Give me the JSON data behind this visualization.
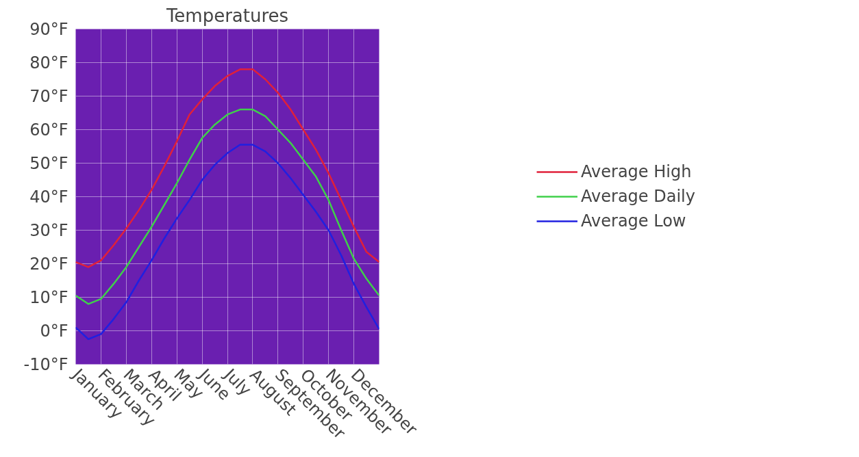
{
  "chart_data": {
    "type": "line",
    "title": "Temperatures",
    "categories": [
      "January",
      null,
      "February",
      null,
      "March",
      null,
      "April",
      null,
      "May",
      null,
      "June",
      null,
      "July",
      null,
      "August",
      null,
      "September",
      null,
      "October",
      null,
      "November",
      null,
      "December",
      null,
      null
    ],
    "ylim": [
      -10,
      90
    ],
    "yticks": [
      {
        "value": -10,
        "label": "-10°F"
      },
      {
        "value": 0,
        "label": "0°F"
      },
      {
        "value": 10,
        "label": "10°F"
      },
      {
        "value": 20,
        "label": "20°F"
      },
      {
        "value": 30,
        "label": "30°F"
      },
      {
        "value": 40,
        "label": "40°F"
      },
      {
        "value": 50,
        "label": "50°F"
      },
      {
        "value": 60,
        "label": "60°F"
      },
      {
        "value": 70,
        "label": "70°F"
      },
      {
        "value": 80,
        "label": "80°F"
      },
      {
        "value": 90,
        "label": "90°F"
      }
    ],
    "series": [
      {
        "name": "Average High",
        "color": "#e0203a",
        "values": [
          20.5,
          19,
          21,
          25.5,
          30.5,
          36,
          42,
          49,
          56.5,
          64.5,
          69,
          73,
          76,
          78,
          78,
          75,
          71,
          66,
          60,
          54,
          47,
          39,
          31,
          23.5,
          20.5
        ]
      },
      {
        "name": "Average Daily",
        "color": "#3fd04a",
        "values": [
          10.5,
          8,
          9.5,
          14,
          19,
          25,
          31,
          37.5,
          44,
          51,
          57.5,
          61.5,
          64.5,
          66,
          66,
          64,
          60,
          56,
          51,
          46,
          39,
          30,
          21.5,
          15.5,
          10.5
        ]
      },
      {
        "name": "Average Low",
        "color": "#2020e0",
        "values": [
          1,
          -2.5,
          -1,
          3.5,
          8.5,
          15,
          21,
          27.5,
          33.5,
          39,
          45,
          49.5,
          53,
          55.5,
          55.5,
          53.5,
          50,
          45.5,
          40.5,
          35.5,
          30,
          22.5,
          14,
          7,
          0.5
        ]
      }
    ],
    "grid": true,
    "legend": "right",
    "marker": "none",
    "line_style": "solid"
  }
}
